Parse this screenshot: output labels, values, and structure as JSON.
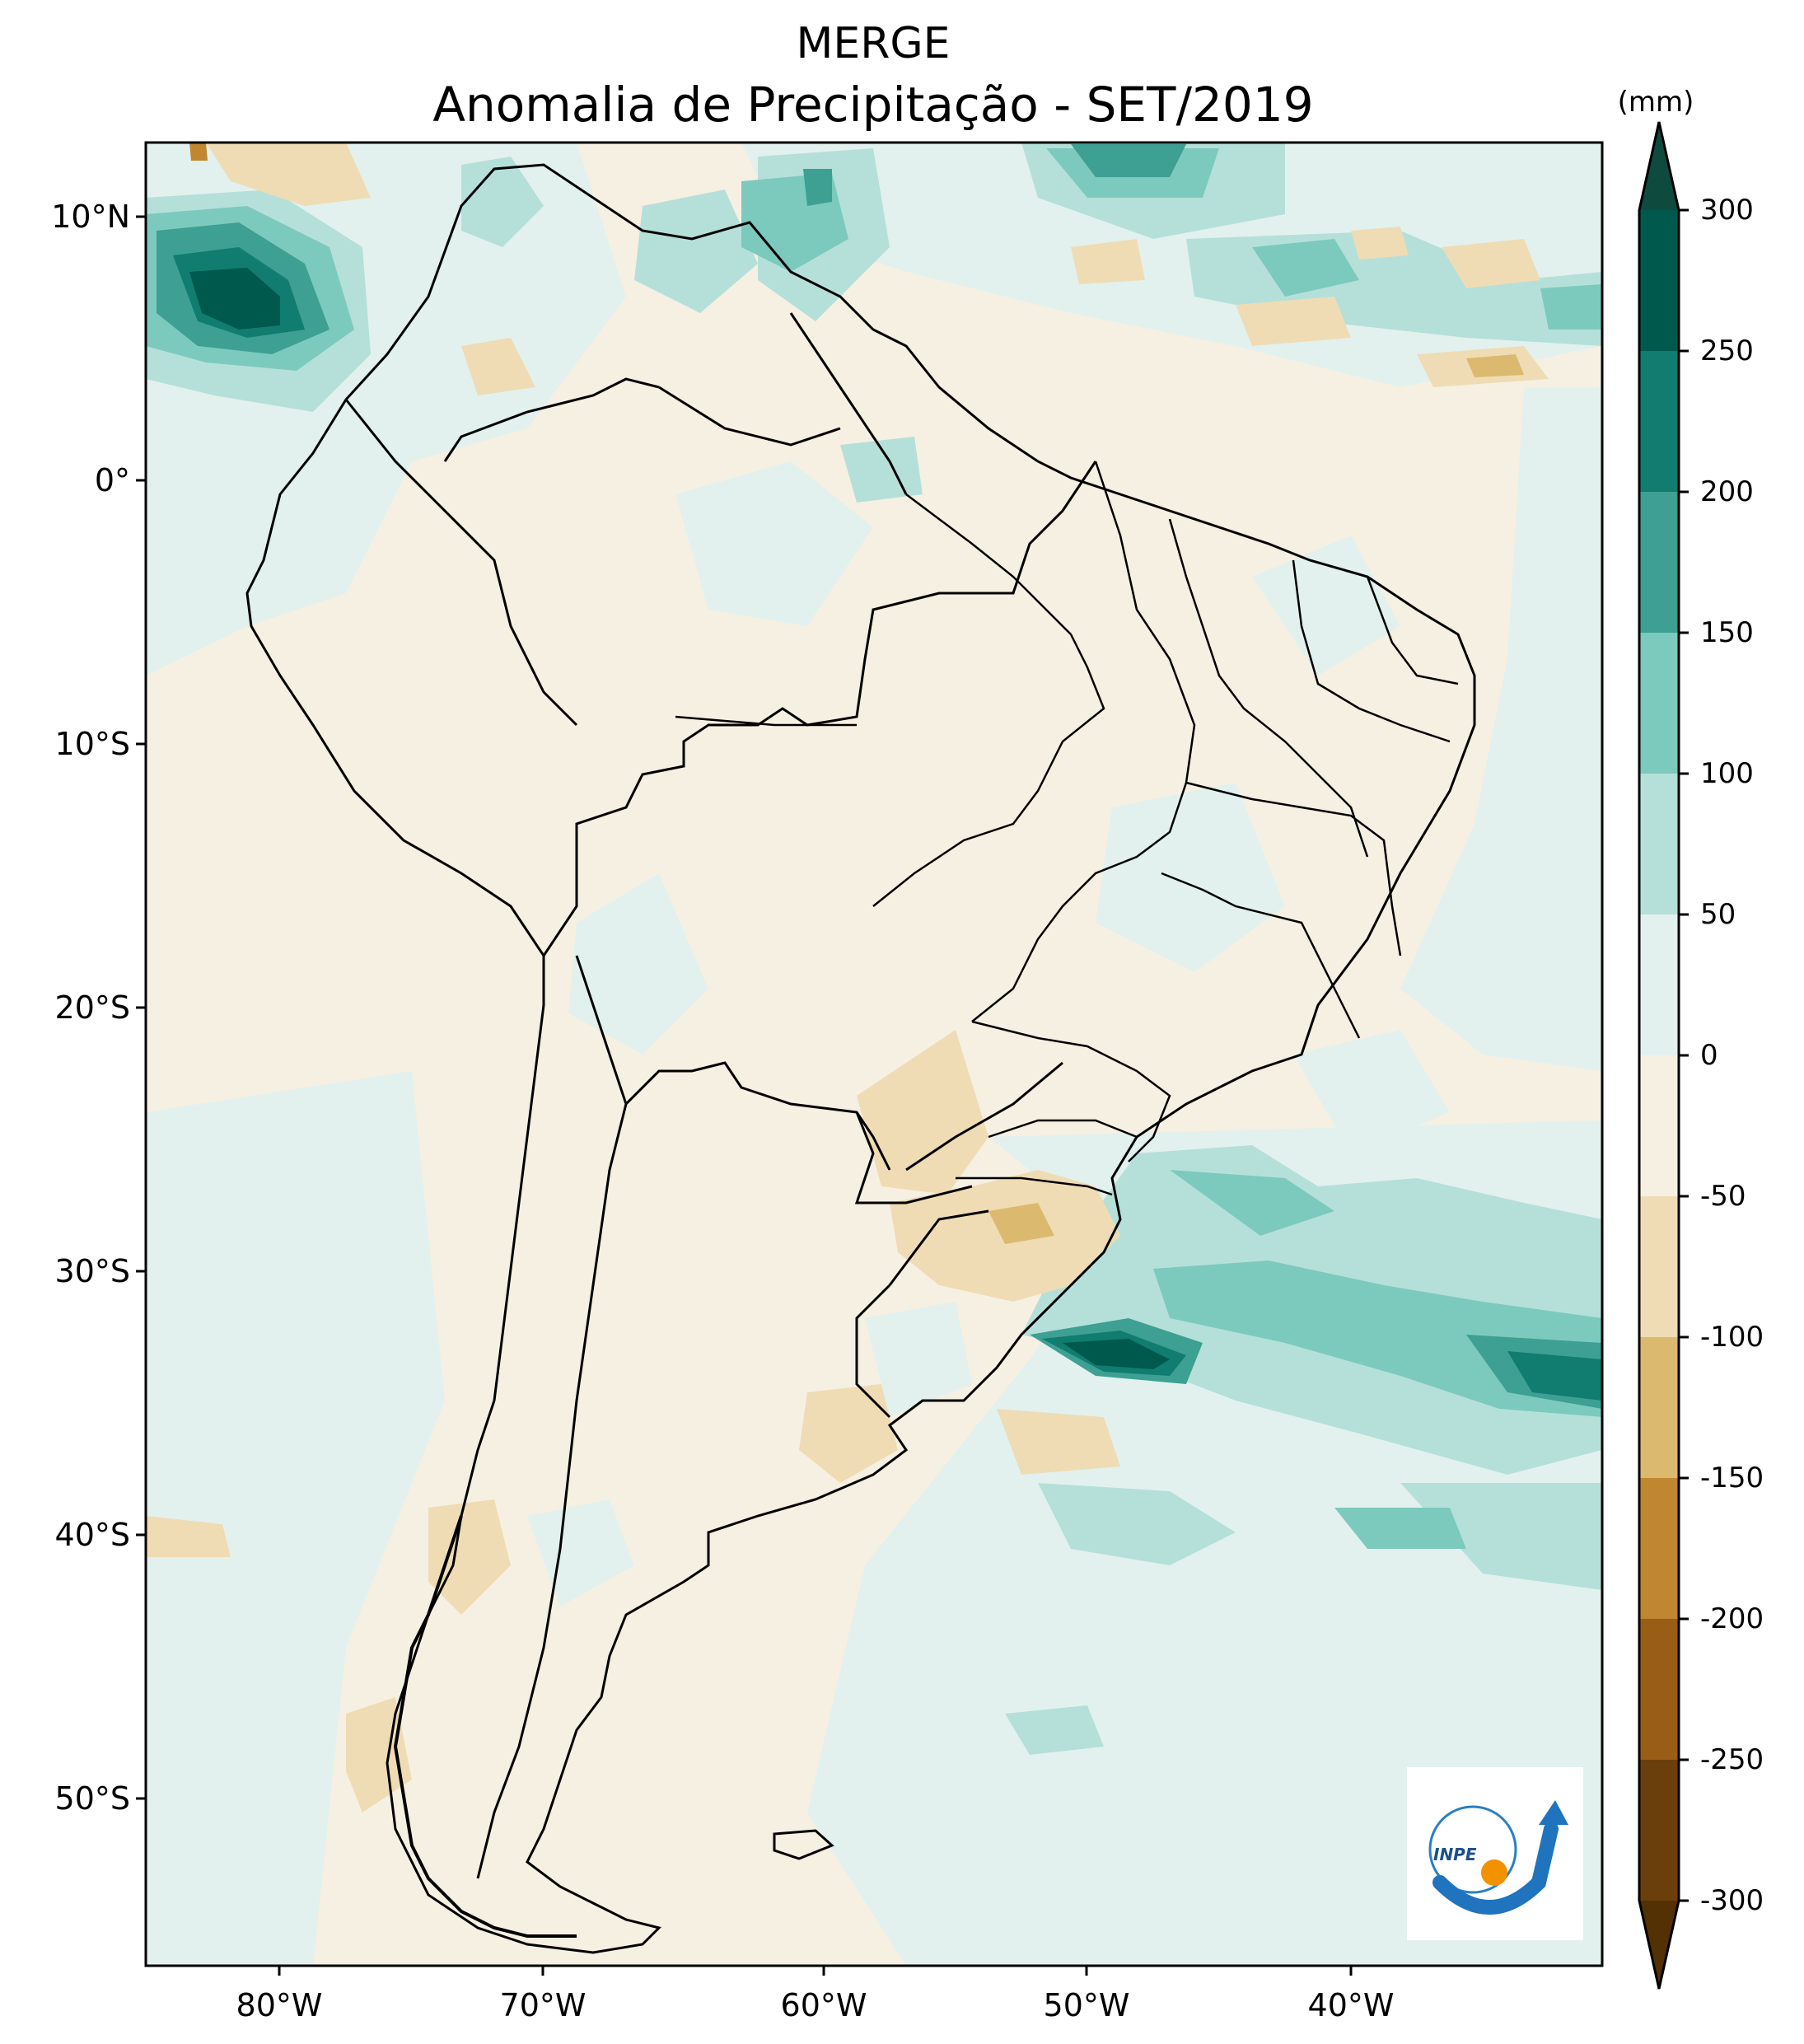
{
  "title": "MERGE",
  "subtitle": "Anomalia de Precipitação - SET/2019",
  "colorbar": {
    "unit": "(mm)",
    "ticks": [
      "300",
      "250",
      "200",
      "150",
      "100",
      "50",
      "0",
      "-50",
      "-100",
      "-150",
      "-200",
      "-250",
      "-300"
    ],
    "colors": {
      "gt_300": "#0f4a3f",
      "c_250_300": "#00594d",
      "c_200_250": "#117c70",
      "c_150_200": "#3e9f93",
      "c_100_150": "#7ccabd",
      "c_50_100": "#b5e0d9",
      "c_0_50": "#e2f1ee",
      "c_m50_0": "#f6f0e2",
      "c_m100_m50": "#efdcb4",
      "c_m150_m100": "#dbb96f",
      "c_m200_m150": "#c08630",
      "c_m250_m200": "#9a5d15",
      "c_m300_m250": "#6b3f0b",
      "lt_m300": "#543005"
    }
  },
  "axes": {
    "lat_labels": [
      "10°N",
      "0°",
      "10°S",
      "20°S",
      "30°S",
      "40°S",
      "50°S"
    ],
    "lon_labels": [
      "80°W",
      "70°W",
      "60°W",
      "50°W",
      "40°W"
    ]
  },
  "logo": {
    "text": "INPE"
  }
}
